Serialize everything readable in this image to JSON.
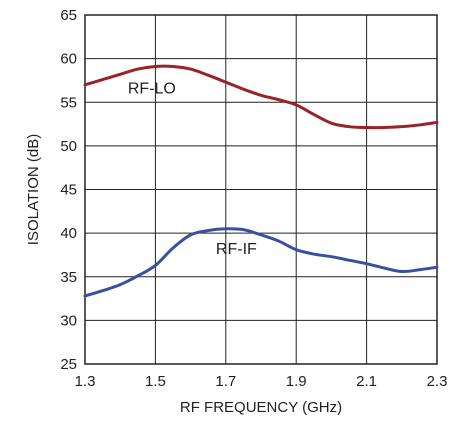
{
  "chart_data": {
    "type": "line",
    "xlabel": "RF FREQUENCY (GHz)",
    "ylabel": "ISOLATION (dB)",
    "xlim": [
      1.3,
      2.3
    ],
    "ylim": [
      25,
      65
    ],
    "x_ticks": [
      1.3,
      1.5,
      1.7,
      1.9,
      2.1,
      2.3
    ],
    "x_tick_labels": [
      "1.3",
      "1.5",
      "1.7",
      "1.9",
      "2.1",
      "2.3"
    ],
    "y_ticks": [
      25,
      30,
      35,
      40,
      45,
      50,
      55,
      60,
      65
    ],
    "y_tick_labels": [
      "25",
      "30",
      "35",
      "40",
      "45",
      "50",
      "55",
      "60",
      "65"
    ],
    "grid": true,
    "series": [
      {
        "name": "RF-LO",
        "color": "#9b2226",
        "x": [
          1.3,
          1.35,
          1.4,
          1.45,
          1.5,
          1.55,
          1.6,
          1.65,
          1.7,
          1.75,
          1.8,
          1.85,
          1.9,
          1.95,
          2.0,
          2.05,
          2.1,
          2.15,
          2.2,
          2.25,
          2.3
        ],
        "y": [
          57.0,
          57.6,
          58.2,
          58.8,
          59.1,
          59.1,
          58.8,
          58.1,
          57.3,
          56.5,
          55.8,
          55.3,
          54.7,
          53.6,
          52.6,
          52.2,
          52.1,
          52.1,
          52.2,
          52.4,
          52.7
        ]
      },
      {
        "name": "RF-IF",
        "color": "#3a4fa0",
        "x": [
          1.3,
          1.35,
          1.4,
          1.45,
          1.5,
          1.55,
          1.6,
          1.65,
          1.7,
          1.75,
          1.8,
          1.85,
          1.9,
          1.95,
          2.0,
          2.05,
          2.1,
          2.15,
          2.2,
          2.25,
          2.3
        ],
        "y": [
          32.8,
          33.4,
          34.1,
          35.1,
          36.3,
          38.3,
          39.8,
          40.3,
          40.5,
          40.4,
          39.8,
          39.1,
          38.1,
          37.6,
          37.3,
          36.9,
          36.5,
          36.0,
          35.6,
          35.8,
          36.1
        ]
      }
    ],
    "annotations": [
      {
        "text": "RF-LO",
        "x": 1.49,
        "y": 56.7
      },
      {
        "text": "RF-IF",
        "x": 1.73,
        "y": 38.3
      }
    ]
  }
}
